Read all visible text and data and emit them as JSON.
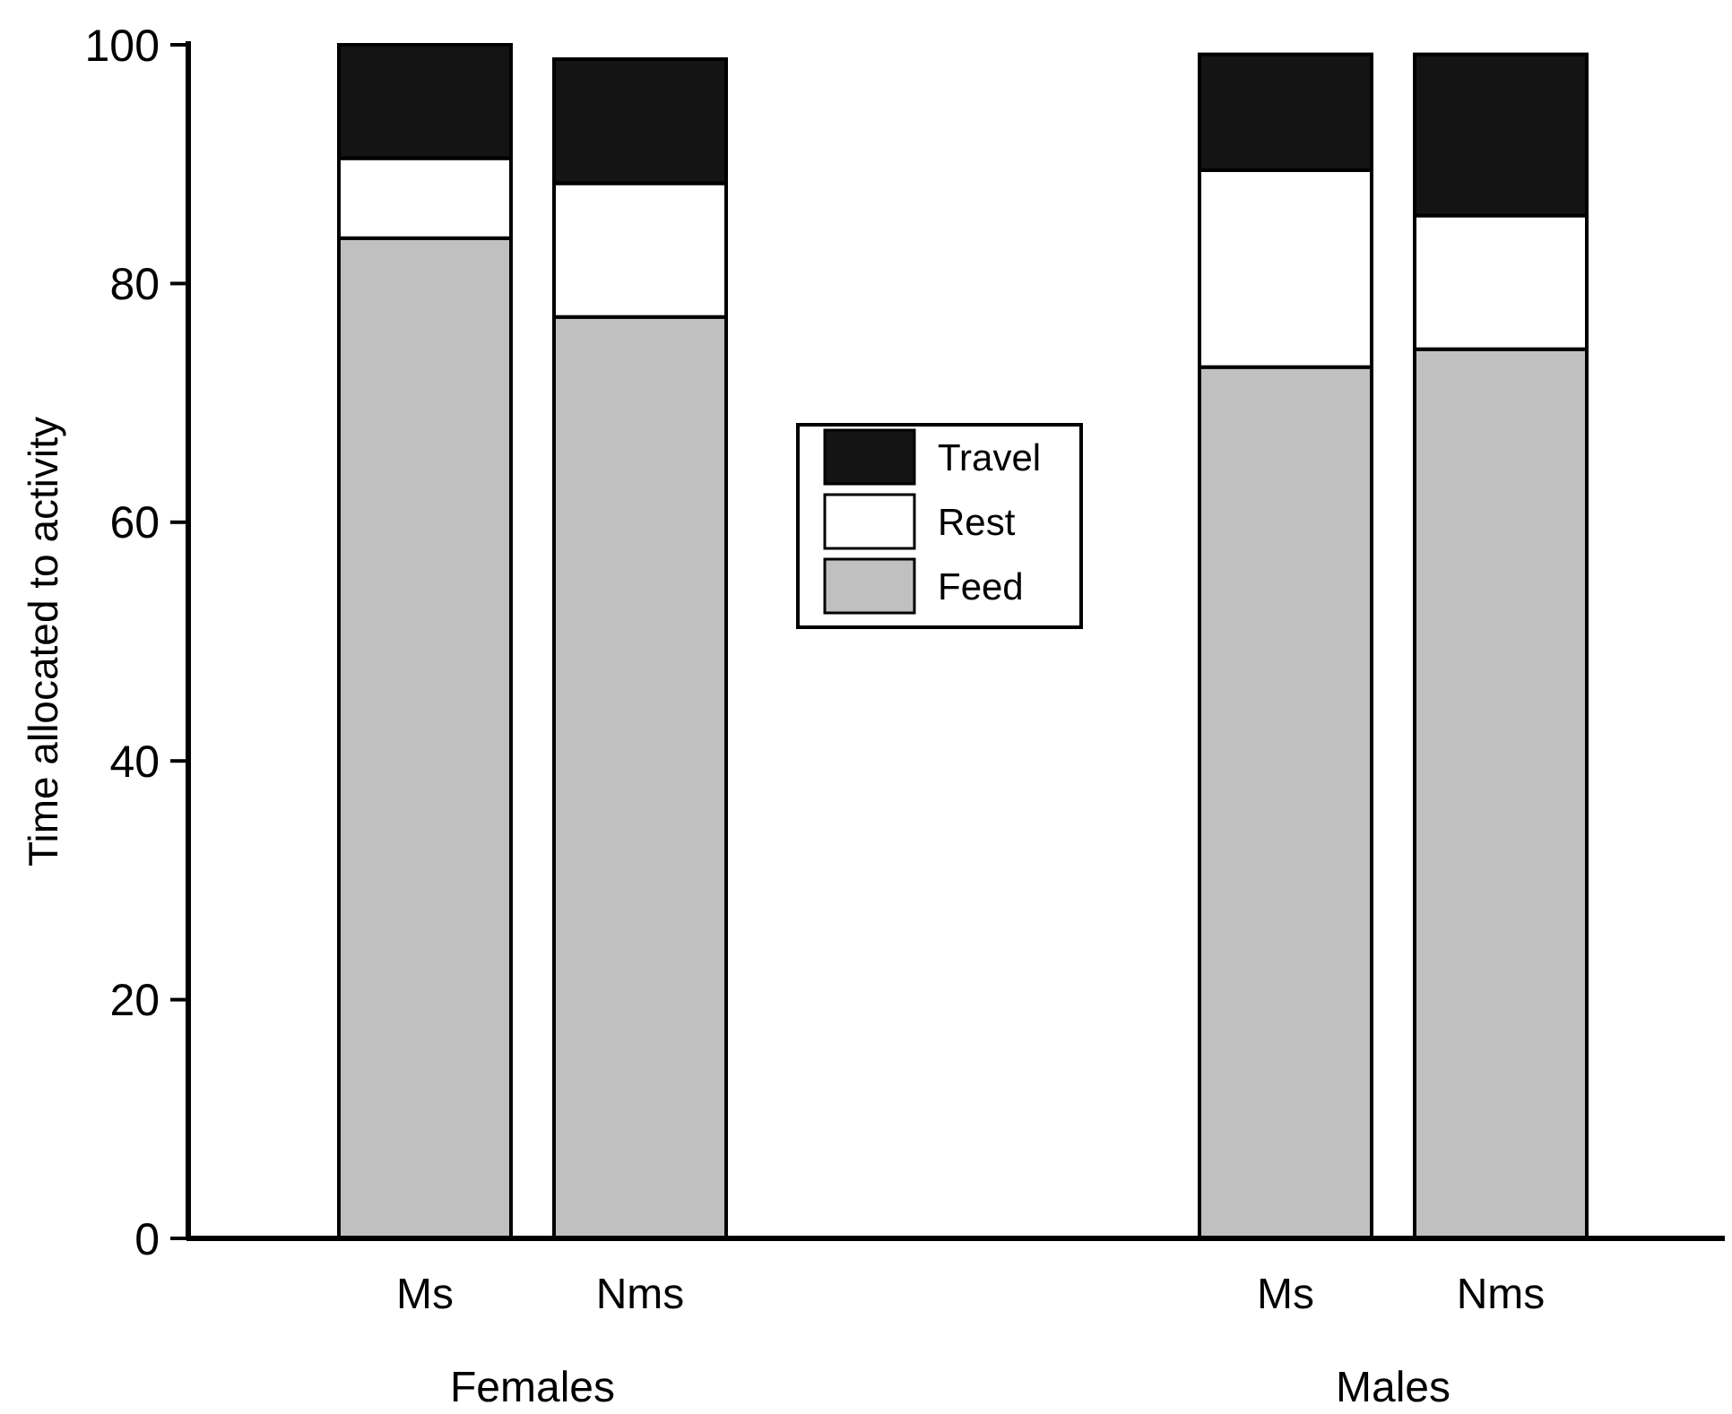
{
  "chart_data": {
    "type": "bar",
    "stacked": true,
    "ylabel": "Time allocated to activity",
    "categories": [
      "Ms",
      "Nms",
      null,
      null,
      "Ms",
      "Nms"
    ],
    "series": [
      {
        "name": "Feed",
        "color": "#c0c0c0",
        "values": [
          83.8,
          77.2,
          null,
          null,
          73.0,
          74.5
        ]
      },
      {
        "name": "Rest",
        "color": "#ffffff",
        "values": [
          6.7,
          11.2,
          null,
          null,
          16.5,
          11.2
        ]
      },
      {
        "name": "Travel",
        "color": "#141414",
        "values": [
          9.5,
          10.4,
          null,
          null,
          9.7,
          13.5
        ]
      }
    ],
    "ylim": [
      0,
      100
    ],
    "yticks": [
      0,
      20,
      40,
      60,
      80,
      100
    ],
    "grid": false,
    "legend": "top",
    "annotations": [
      "Females",
      "Males"
    ]
  }
}
